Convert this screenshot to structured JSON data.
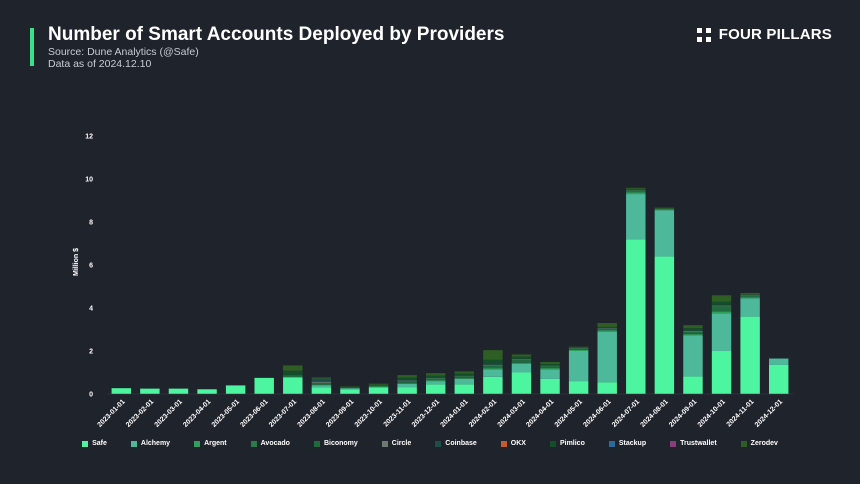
{
  "header": {
    "title": "Number of Smart Accounts Deployed by Providers",
    "source": "Source: Dune Analytics (@Safe)",
    "date_note": "Data as of 2024.12.10"
  },
  "logo": {
    "text": "FOUR PILLARS",
    "icon": "four-squares-logo-icon"
  },
  "colors": {
    "accent": "#3ce08a",
    "background": "#1f232b"
  },
  "chart_data": {
    "type": "bar",
    "stacked": true,
    "ylabel": "Million $",
    "ylim": [
      0,
      12
    ],
    "yticks": [
      0,
      2,
      4,
      6,
      8,
      10,
      12
    ],
    "grid": false,
    "legend_position": "bottom",
    "categories": [
      "2023-01-01",
      "2023-02-01",
      "2023-03-01",
      "2023-04-01",
      "2023-05-01",
      "2023-06-01",
      "2023-07-01",
      "2023-08-01",
      "2023-09-01",
      "2023-10-01",
      "2023-11-01",
      "2023-12-01",
      "2024-01-01",
      "2024-02-01",
      "2024-03-01",
      "2024-04-01",
      "2024-05-01",
      "2024-06-01",
      "2024-07-01",
      "2024-08-01",
      "2024-09-01",
      "2024-10-01",
      "2024-11-01",
      "2024-12-01"
    ],
    "series": [
      {
        "name": "Safe",
        "color": "#4ef5a0",
        "values": [
          0.27,
          0.25,
          0.25,
          0.22,
          0.4,
          0.75,
          0.78,
          0.3,
          0.22,
          0.28,
          0.32,
          0.45,
          0.45,
          0.8,
          1.0,
          0.7,
          0.6,
          0.55,
          7.2,
          6.4,
          0.82,
          2.0,
          3.6,
          1.35
        ]
      },
      {
        "name": "Alchemy",
        "color": "#4db89a",
        "values": [
          0,
          0,
          0,
          0,
          0,
          0,
          0,
          0.1,
          0.05,
          0.05,
          0.15,
          0.15,
          0.25,
          0.35,
          0.4,
          0.45,
          1.4,
          2.35,
          2.1,
          2.15,
          1.9,
          1.75,
          0.85,
          0.3
        ]
      },
      {
        "name": "Argent",
        "color": "#2f9f5c",
        "values": [
          0,
          0,
          0,
          0,
          0,
          0,
          0,
          0.02,
          0,
          0.02,
          0.03,
          0.03,
          0.03,
          0.05,
          0.05,
          0.05,
          0.05,
          0.05,
          0.08,
          0.03,
          0.05,
          0.08,
          0.05,
          0
        ]
      },
      {
        "name": "Avocado",
        "color": "#2a7a4a",
        "values": [
          0,
          0,
          0,
          0,
          0,
          0,
          0,
          0.02,
          0,
          0,
          0.02,
          0.02,
          0.02,
          0.03,
          0.03,
          0.02,
          0.03,
          0.03,
          0.05,
          0.02,
          0.03,
          0.05,
          0.03,
          0
        ]
      },
      {
        "name": "Biconomy",
        "color": "#1e6b3e",
        "values": [
          0,
          0,
          0,
          0,
          0,
          0,
          0.1,
          0.08,
          0.03,
          0.05,
          0.1,
          0.08,
          0.08,
          0.1,
          0.1,
          0.08,
          0.05,
          0.05,
          0.05,
          0.02,
          0.1,
          0.2,
          0.05,
          0
        ]
      },
      {
        "name": "Circle",
        "color": "#6d7a73",
        "values": [
          0,
          0,
          0,
          0,
          0,
          0,
          0,
          0.05,
          0,
          0,
          0.02,
          0.02,
          0.02,
          0.03,
          0.03,
          0.02,
          0.02,
          0.02,
          0.02,
          0,
          0.03,
          0.03,
          0.02,
          0
        ]
      },
      {
        "name": "Coinbase",
        "color": "#1f4e4a",
        "values": [
          0,
          0,
          0,
          0,
          0,
          0,
          0,
          0.15,
          0,
          0,
          0.02,
          0.02,
          0.02,
          0.03,
          0.03,
          0.02,
          0.02,
          0.02,
          0.02,
          0,
          0.03,
          0.03,
          0.02,
          0
        ]
      },
      {
        "name": "OKX",
        "color": "#c75a2e",
        "values": [
          0,
          0,
          0,
          0,
          0,
          0,
          0,
          0,
          0,
          0,
          0,
          0,
          0,
          0,
          0,
          0,
          0,
          0,
          0,
          0,
          0,
          0,
          0,
          0
        ]
      },
      {
        "name": "Pimlico",
        "color": "#134d2a",
        "values": [
          0,
          0,
          0,
          0,
          0,
          0,
          0.2,
          0,
          0.03,
          0.03,
          0.1,
          0.08,
          0.08,
          0.2,
          0.1,
          0.05,
          0,
          0.05,
          0.02,
          0,
          0.1,
          0.15,
          0,
          0
        ]
      },
      {
        "name": "Stackup",
        "color": "#2a6d9c",
        "values": [
          0,
          0,
          0,
          0,
          0,
          0,
          0,
          0,
          0,
          0,
          0,
          0,
          0,
          0,
          0,
          0,
          0,
          0,
          0,
          0,
          0,
          0,
          0,
          0
        ]
      },
      {
        "name": "Trustwallet",
        "color": "#8a3d7a",
        "values": [
          0,
          0,
          0,
          0,
          0,
          0,
          0,
          0,
          0,
          0,
          0,
          0,
          0,
          0,
          0,
          0,
          0,
          0,
          0,
          0,
          0,
          0,
          0,
          0
        ]
      },
      {
        "name": "Zerodev",
        "color": "#2f5e24",
        "values": [
          0,
          0,
          0,
          0,
          0,
          0,
          0.25,
          0.05,
          0.02,
          0.05,
          0.12,
          0.12,
          0.1,
          0.45,
          0.1,
          0.1,
          0.03,
          0.18,
          0.05,
          0.05,
          0.14,
          0.3,
          0.08,
          0
        ]
      }
    ]
  }
}
